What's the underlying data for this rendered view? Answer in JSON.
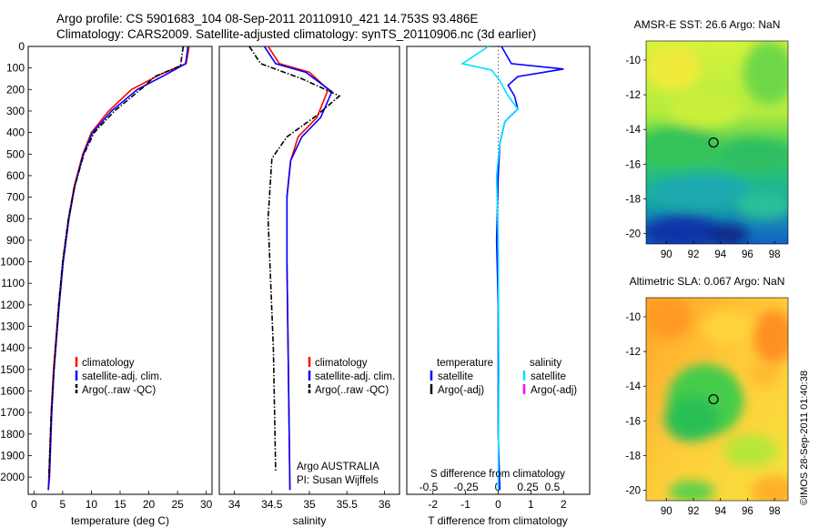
{
  "header": {
    "line1": "Argo profile: CS 5901683_104 08-Sep-2011 20110910_421 14.753S 93.486E",
    "line2": "Climatology: CARS2009. Satellite-adjusted climatology: synTS_20110906.nc (3d earlier)"
  },
  "footer_credit": "©IMOS 28-Sep-2011 01:40:38",
  "colors": {
    "climatology": "#ff0000",
    "satellite": "#0000ff",
    "argo": "#000000",
    "satellite_salinity": "#00e0ff",
    "argo_adj_salinity": "#ff00ff"
  },
  "chart_data": [
    {
      "type": "line",
      "xlabel": "temperature (deg C)",
      "ylabel": "",
      "xlim": [
        -1,
        31
      ],
      "ylim": [
        2080,
        0
      ],
      "xticks": [
        "0",
        "5",
        "10",
        "15",
        "20",
        "25",
        "30"
      ],
      "yticks": [
        "0",
        "100",
        "200",
        "300",
        "400",
        "500",
        "600",
        "700",
        "800",
        "900",
        "1000",
        "1100",
        "1200",
        "1300",
        "1400",
        "1500",
        "1600",
        "1700",
        "1800",
        "1900",
        "2000"
      ],
      "legend": [
        "climatology",
        "satellite-adj. clim.",
        "Argo(..raw -QC)"
      ],
      "series": [
        {
          "name": "climatology",
          "style": "solid",
          "color": "#ff0000",
          "x": [
            27,
            26.5,
            22,
            17,
            13,
            10,
            8.5,
            7,
            6,
            5,
            4.3,
            3.4,
            3,
            2.6,
            2.5
          ],
          "y": [
            0,
            80,
            130,
            200,
            300,
            400,
            500,
            650,
            800,
            1000,
            1200,
            1500,
            1700,
            2000,
            2060
          ]
        },
        {
          "name": "satellite-adj. clim.",
          "style": "solid",
          "color": "#0000ff",
          "x": [
            26.8,
            26.4,
            23,
            18,
            13.5,
            10.2,
            8.6,
            7.1,
            6.1,
            5.1,
            4.4,
            3.5,
            3.1,
            2.7,
            2.5
          ],
          "y": [
            0,
            80,
            130,
            200,
            300,
            400,
            500,
            650,
            800,
            1000,
            1200,
            1500,
            1700,
            2000,
            2060
          ]
        },
        {
          "name": "Argo(..raw -QC)",
          "style": "dashdot",
          "color": "#000000",
          "x": [
            26,
            25.5,
            21,
            19,
            14,
            10.5,
            8.7,
            7.1,
            6,
            5,
            4.3,
            3.5,
            3,
            2.6
          ],
          "y": [
            0,
            90,
            140,
            190,
            300,
            400,
            500,
            650,
            800,
            1000,
            1200,
            1500,
            1700,
            2000
          ]
        }
      ]
    },
    {
      "type": "line",
      "xlabel": "salinity",
      "ylabel": "",
      "xlim": [
        33.8,
        36.2
      ],
      "ylim": [
        2080,
        0
      ],
      "xticks": [
        "34",
        "34.5",
        "35",
        "35.5",
        "36"
      ],
      "legend": [
        "climatology",
        "satellite-adj. clim.",
        "Argo(..raw -QC)"
      ],
      "annotation": [
        "Argo AUSTRALIA",
        "PI: Susan Wijffels"
      ],
      "series": [
        {
          "name": "climatology",
          "style": "solid",
          "color": "#ff0000",
          "x": [
            34.45,
            34.6,
            35,
            35.25,
            35.1,
            34.85,
            34.75,
            34.7,
            34.7,
            34.72,
            34.74
          ],
          "y": [
            0,
            80,
            120,
            200,
            330,
            420,
            530,
            700,
            1000,
            1500,
            2060
          ]
        },
        {
          "name": "satellite-adj. clim.",
          "style": "solid",
          "color": "#0000ff",
          "x": [
            34.4,
            34.55,
            34.95,
            35.3,
            35.15,
            34.9,
            34.75,
            34.7,
            34.7,
            34.72,
            34.74
          ],
          "y": [
            0,
            80,
            120,
            210,
            330,
            420,
            530,
            700,
            1000,
            1500,
            2060
          ]
        },
        {
          "name": "Argo(..raw -QC)",
          "style": "dashdot",
          "color": "#000000",
          "x": [
            34.2,
            34.35,
            34.9,
            35.15,
            35.4,
            35.1,
            34.7,
            34.5,
            34.45,
            34.52,
            34.55
          ],
          "y": [
            0,
            80,
            150,
            190,
            230,
            320,
            420,
            520,
            800,
            1400,
            1970
          ]
        }
      ]
    },
    {
      "type": "line",
      "xlabel": "T difference from climatology",
      "xlabel_top": "S difference from climatology",
      "xlim": [
        -2.8,
        2.8
      ],
      "ylim": [
        2080,
        0
      ],
      "xticks": [
        "-2",
        "-1",
        "0",
        "1",
        "2"
      ],
      "xticks_s": [
        "-0.5",
        "-0.25",
        "0",
        "0.25",
        "0.5"
      ],
      "legend_headers": [
        "temperature",
        "salinity"
      ],
      "legend": [
        "satellite",
        "Argo(-adj)",
        "satellite",
        "Argo(-adj)"
      ],
      "series": [
        {
          "name": "satellite",
          "quantity": "temperature",
          "style": "solid",
          "color": "#0000ff",
          "x": [
            0.1,
            0.4,
            2.0,
            0.6,
            0.3,
            0.5,
            0.6,
            0.2,
            0.05,
            0,
            -0.05,
            0,
            0,
            0,
            0.05
          ],
          "y": [
            0,
            80,
            105,
            140,
            180,
            230,
            290,
            350,
            450,
            600,
            900,
            1200,
            1500,
            1800,
            2060
          ]
        },
        {
          "name": "satellite",
          "quantity": "salinity",
          "style": "solid",
          "color": "#00e0ff",
          "x": [
            -0.3,
            -1.1,
            -0.2,
            0.05,
            0.3,
            0.6,
            0.2,
            0.05,
            -0.05,
            0,
            0.02,
            0
          ],
          "y": [
            0,
            80,
            110,
            160,
            230,
            290,
            350,
            450,
            600,
            900,
            1500,
            2060
          ]
        }
      ]
    },
    {
      "type": "heatmap",
      "title": "AMSR-E SST: 26.6  Argo: NaN",
      "xlim": [
        88.5,
        99
      ],
      "ylim": [
        -20.6,
        -8.9
      ],
      "xticks": [
        "90",
        "92",
        "94",
        "96",
        "98"
      ],
      "yticks": [
        "-10",
        "-12",
        "-14",
        "-16",
        "-18",
        "-20"
      ],
      "argo_position": [
        93.486,
        -14.753
      ]
    },
    {
      "type": "heatmap",
      "title": "Altimetric SLA: 0.067  Argo: NaN",
      "xlim": [
        88.5,
        99
      ],
      "ylim": [
        -20.6,
        -8.9
      ],
      "xticks": [
        "90",
        "92",
        "94",
        "96",
        "98"
      ],
      "yticks": [
        "-10",
        "-12",
        "-14",
        "-16",
        "-18",
        "-20"
      ],
      "argo_position": [
        93.486,
        -14.753
      ]
    }
  ]
}
